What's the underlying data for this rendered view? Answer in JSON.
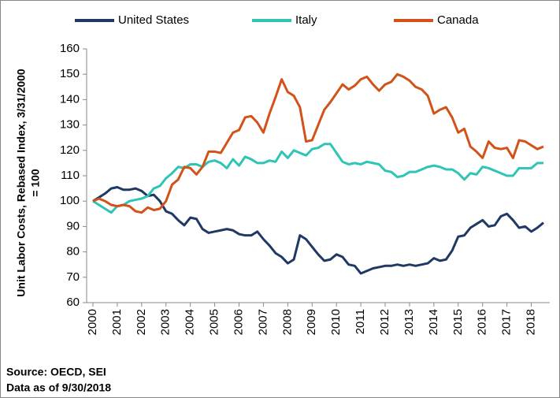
{
  "chart_data": {
    "type": "line",
    "y_label": [
      "Unit Labor Costs, Rebased Index, 3/31/2000",
      "= 100"
    ],
    "notes": [
      "Source: OECD, SEI",
      "Data as of 9/30/2018"
    ],
    "categories": [
      "2000",
      null,
      null,
      null,
      "2001",
      null,
      null,
      null,
      "2002",
      null,
      null,
      null,
      "2003",
      null,
      null,
      null,
      "2004",
      null,
      null,
      null,
      "2005",
      null,
      null,
      null,
      "2006",
      null,
      null,
      null,
      "2007",
      null,
      null,
      null,
      "2008",
      null,
      null,
      null,
      "2009",
      null,
      null,
      null,
      "2010",
      null,
      null,
      null,
      "2011",
      null,
      null,
      null,
      "2012",
      null,
      null,
      null,
      "2013",
      null,
      null,
      null,
      "2014",
      null,
      null,
      null,
      "2015",
      null,
      null,
      null,
      "2016",
      null,
      null,
      null,
      "2017",
      null,
      null,
      null,
      "2018",
      null,
      null
    ],
    "series": [
      {
        "name": "United States",
        "color": "#1f3864",
        "values": [
          100,
          101.5,
          103,
          105,
          105.5,
          104.5,
          104.5,
          105,
          104,
          102,
          102.5,
          100,
          96,
          95,
          92.5,
          90.5,
          93.5,
          93,
          89,
          87.5,
          88,
          88.5,
          89,
          88.5,
          87,
          86.5,
          86.5,
          88,
          85,
          82.5,
          79.5,
          78,
          75.5,
          77,
          86.5,
          85,
          82,
          79,
          76.5,
          77,
          79,
          78,
          75,
          74.5,
          71.5,
          72.5,
          73.5,
          74,
          74.5,
          74.5,
          75,
          74.5,
          75,
          74.5,
          75,
          75.5,
          77.5,
          76.5,
          77,
          80.5,
          86,
          86.5,
          89.5,
          91,
          92.5,
          90,
          90.5,
          94,
          95,
          92.5,
          89.5,
          90,
          88,
          89.5,
          91.5
        ]
      },
      {
        "name": "Italy",
        "color": "#2ec4b6",
        "values": [
          100,
          98.5,
          97,
          95.5,
          98,
          98.5,
          100,
          100.5,
          101,
          102,
          105,
          106,
          109,
          111,
          113.5,
          113,
          114.5,
          114.5,
          113.5,
          115.5,
          116,
          115,
          113,
          116.5,
          114,
          117.5,
          116.5,
          115,
          115,
          116,
          115.5,
          119.5,
          117,
          120,
          119,
          118,
          120.5,
          121,
          122.5,
          122.5,
          119,
          115.5,
          114.5,
          115,
          114.5,
          115.5,
          115,
          114.5,
          112,
          111.5,
          109.5,
          110,
          111.5,
          111.5,
          112.5,
          113.5,
          114,
          113.5,
          112.5,
          112.5,
          111,
          108.5,
          111,
          110.5,
          113.5,
          113,
          112,
          111,
          110,
          110,
          113,
          113,
          113,
          115,
          115
        ]
      },
      {
        "name": "Canada",
        "color": "#d2521a",
        "values": [
          100,
          101,
          100,
          98.5,
          98,
          98.5,
          98,
          96,
          95.5,
          97.5,
          96.5,
          97,
          100,
          106.5,
          108.5,
          113.5,
          113,
          110.5,
          113.5,
          119.5,
          119.5,
          119,
          123,
          127,
          128,
          133,
          133.5,
          131,
          127,
          134.5,
          141,
          148,
          143,
          141.5,
          137,
          123.5,
          124,
          130,
          136,
          139,
          142.5,
          146,
          144,
          145.5,
          148,
          149,
          146,
          143.5,
          146,
          147,
          150,
          149,
          147.5,
          145,
          144,
          141.5,
          134.5,
          136,
          137,
          133,
          127,
          128.5,
          121.5,
          119.5,
          117,
          123.5,
          121,
          120.5,
          121,
          117,
          124,
          123.5,
          122,
          120.5,
          121.5
        ]
      }
    ],
    "ylim": [
      60,
      160
    ],
    "yticks": [
      60,
      70,
      80,
      90,
      100,
      110,
      120,
      130,
      140,
      150,
      160
    ],
    "grid": false
  }
}
